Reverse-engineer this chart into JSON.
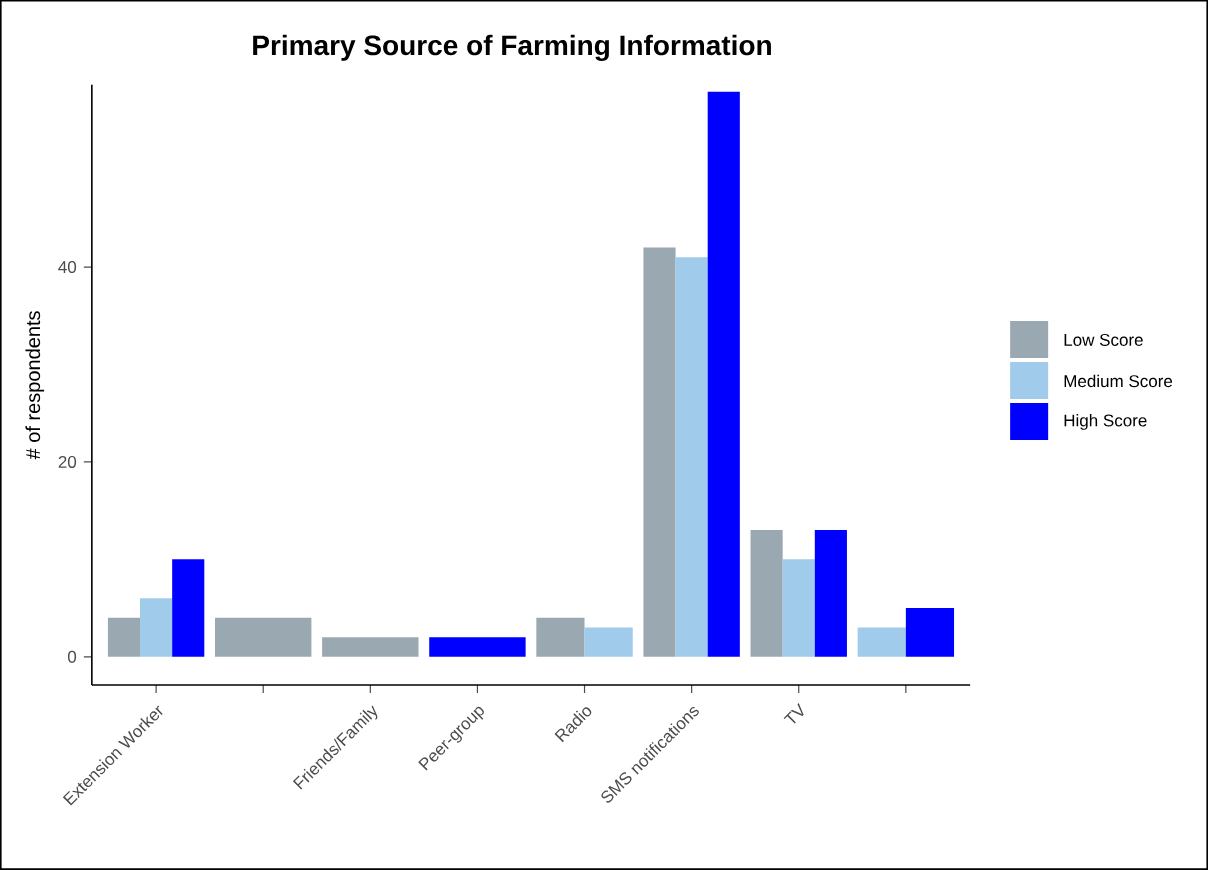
{
  "chart_data": {
    "type": "bar",
    "title": "Primary Source of Farming Information",
    "ylabel": "# of respondents",
    "categories": [
      "Extension Worker",
      null,
      "Friends/Family",
      "Peer-group",
      "Radio",
      "SMS notifications",
      "TV",
      null
    ],
    "series": [
      {
        "name": "Low Score",
        "color": "#9aa8b2",
        "values": [
          4,
          4,
          2,
          null,
          4,
          42,
          13,
          null
        ]
      },
      {
        "name": "Medium Score",
        "color": "#a0cbea",
        "values": [
          6,
          null,
          null,
          null,
          3,
          41,
          10,
          3
        ]
      },
      {
        "name": "High Score",
        "color": "#0000ff",
        "values": [
          10,
          null,
          null,
          2,
          null,
          58,
          13,
          5
        ]
      }
    ],
    "ylim": [
      -2.9,
      58.7
    ],
    "yticks": [
      0,
      20,
      40
    ],
    "grid": false,
    "legend": "right"
  }
}
